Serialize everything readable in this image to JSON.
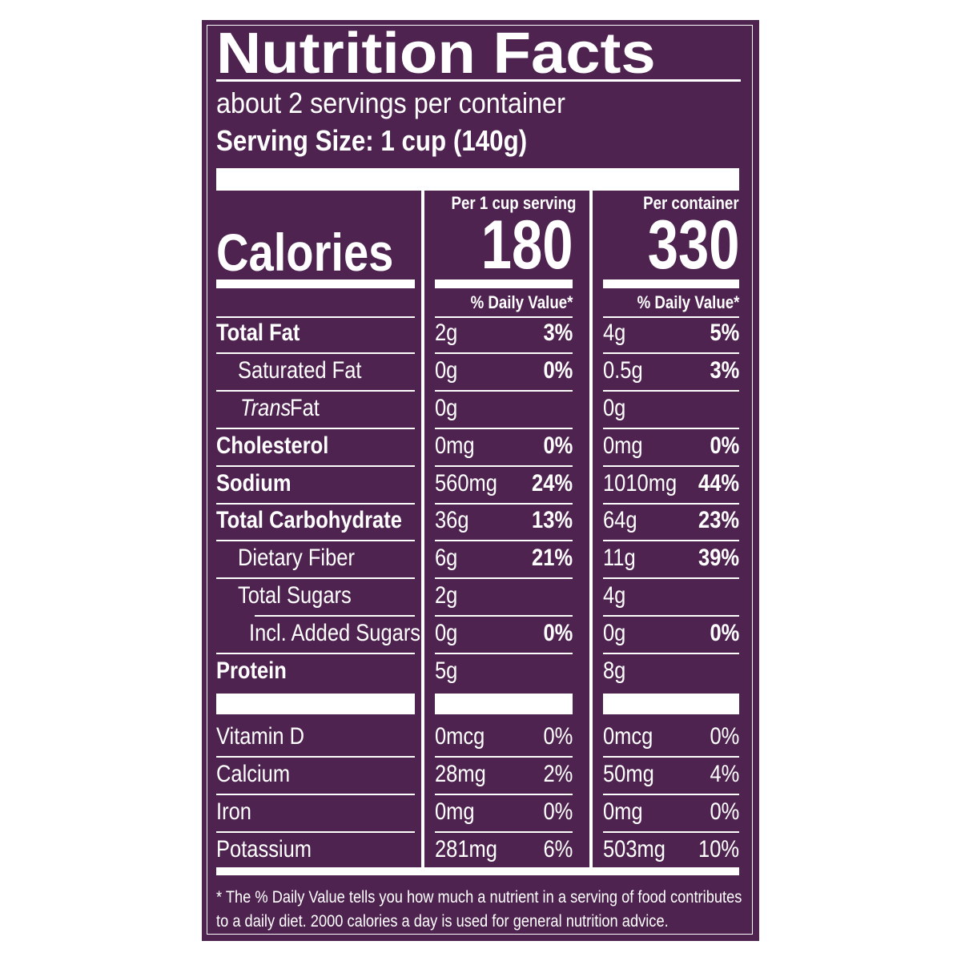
{
  "header": {
    "title": "Nutrition Facts",
    "servings": "about 2 servings per container",
    "serving_size": "Serving Size: 1 cup (140g)"
  },
  "columns": [
    {
      "heading": "Per 1 cup serving",
      "calories": "180",
      "dv_heading": "% Daily Value*"
    },
    {
      "heading": "Per container",
      "calories": "330",
      "dv_heading": "% Daily Value*"
    }
  ],
  "calories_label": "Calories",
  "nutrients": [
    {
      "label": "Total Fat",
      "bold": true,
      "indent": 0,
      "values": [
        [
          "2g",
          "3%"
        ],
        [
          "4g",
          "5%"
        ]
      ]
    },
    {
      "label": "Saturated Fat",
      "bold": false,
      "indent": 1,
      "values": [
        [
          "0g",
          "0%"
        ],
        [
          "0.5g",
          "3%"
        ]
      ]
    },
    {
      "italic": "Trans",
      "label": "Fat",
      "bold": false,
      "indent": 1,
      "values": [
        [
          "0g"
        ],
        [
          "0g"
        ]
      ]
    },
    {
      "label": "Cholesterol",
      "bold": true,
      "indent": 0,
      "values": [
        [
          "0mg",
          "0%"
        ],
        [
          "0mg",
          "0%"
        ]
      ]
    },
    {
      "label": "Sodium",
      "bold": true,
      "indent": 0,
      "values": [
        [
          "560mg",
          "24%"
        ],
        [
          "1010mg",
          "44%"
        ]
      ]
    },
    {
      "label": "Total Carbohydrate",
      "bold": true,
      "indent": 0,
      "values": [
        [
          "36g",
          "13%"
        ],
        [
          "64g",
          "23%"
        ]
      ]
    },
    {
      "label": "Dietary Fiber",
      "bold": false,
      "indent": 1,
      "values": [
        [
          "6g",
          "21%"
        ],
        [
          "11g",
          "39%"
        ]
      ]
    },
    {
      "label": "Total Sugars",
      "bold": false,
      "indent": 1,
      "values": [
        [
          "2g"
        ],
        [
          "4g"
        ]
      ]
    },
    {
      "label": "Incl. Added Sugars",
      "bold": false,
      "indent": 2,
      "values": [
        [
          "0g",
          "0%"
        ],
        [
          "0g",
          "0%"
        ]
      ]
    },
    {
      "label": "Protein",
      "bold": true,
      "indent": 0,
      "values": [
        [
          "5g"
        ],
        [
          "8g"
        ]
      ]
    }
  ],
  "vitamins": [
    {
      "label": "Vitamin D",
      "values": [
        [
          "0mcg",
          "0%"
        ],
        [
          "0mcg",
          "0%"
        ]
      ]
    },
    {
      "label": "Calcium",
      "values": [
        [
          "28mg",
          "2%"
        ],
        [
          "50mg",
          "4%"
        ]
      ]
    },
    {
      "label": "Iron",
      "values": [
        [
          "0mg",
          "0%"
        ],
        [
          "0mg",
          "0%"
        ]
      ]
    },
    {
      "label": "Potassium",
      "values": [
        [
          "281mg",
          "6%"
        ],
        [
          "503mg",
          "10%"
        ]
      ]
    }
  ],
  "footnote": [
    "* The % Daily Value tells you how much a nutrient in a serving of food contributes",
    "to a daily diet. 2000 calories a day is used for general nutrition advice."
  ]
}
